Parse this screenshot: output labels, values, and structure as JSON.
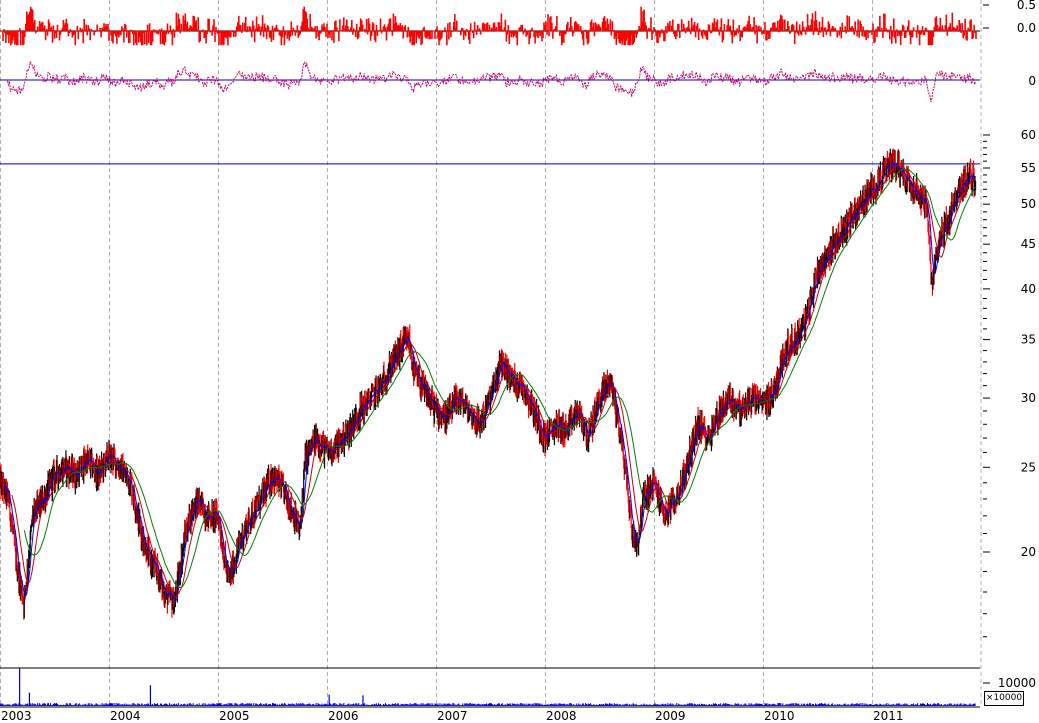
{
  "colors": {
    "background": "#ffffff",
    "oscillator_fill": "#ff0000",
    "reference_line": "#0000cc",
    "price_bars": "#000000",
    "price_bars_down": "#ff0000",
    "ma_short": "#0000ff",
    "ma_mid": "#cc0000",
    "ma_long": "#008000",
    "volume": "#0000cc",
    "grid": "#b0b0b0"
  },
  "panels": {
    "oscillator_1": {
      "yticks": [
        "0.5",
        "0.0"
      ]
    },
    "oscillator_2": {
      "yticks": [
        "0"
      ]
    },
    "volume": {
      "ytick": "10000",
      "unit": "×10000"
    }
  },
  "chart_data": [
    {
      "type": "candlestick",
      "panel": "price",
      "scale": "log",
      "ylim": [
        15,
        62
      ],
      "yticks": [
        20,
        25,
        30,
        35,
        40,
        45,
        50,
        55,
        60
      ],
      "reference_line": 55.6,
      "xticks": [
        "2003",
        "2004",
        "2005",
        "2006",
        "2007",
        "2008",
        "2009",
        "2010",
        "2011"
      ],
      "xlim": [
        2003.0,
        2011.95
      ],
      "grid": "vertical dashed at year boundaries",
      "close_series": {
        "x": [
          2003.0,
          2003.08,
          2003.15,
          2003.22,
          2003.3,
          2003.4,
          2003.5,
          2003.6,
          2003.7,
          2003.8,
          2003.9,
          2004.0,
          2004.1,
          2004.2,
          2004.3,
          2004.38,
          2004.45,
          2004.5,
          2004.6,
          2004.7,
          2004.8,
          2004.9,
          2005.0,
          2005.05,
          2005.1,
          2005.2,
          2005.3,
          2005.4,
          2005.5,
          2005.6,
          2005.7,
          2005.75,
          2005.8,
          2005.9,
          2006.0,
          2006.1,
          2006.2,
          2006.3,
          2006.4,
          2006.5,
          2006.6,
          2006.7,
          2006.75,
          2006.8,
          2006.9,
          2007.0,
          2007.1,
          2007.2,
          2007.3,
          2007.4,
          2007.5,
          2007.6,
          2007.7,
          2007.8,
          2007.9,
          2008.0,
          2008.1,
          2008.2,
          2008.3,
          2008.4,
          2008.5,
          2008.6,
          2008.7,
          2008.75,
          2008.8,
          2008.85,
          2008.9,
          2009.0,
          2009.1,
          2009.2,
          2009.3,
          2009.4,
          2009.5,
          2009.6,
          2009.7,
          2009.8,
          2009.9,
          2010.0,
          2010.1,
          2010.2,
          2010.3,
          2010.4,
          2010.5,
          2010.6,
          2010.7,
          2010.8,
          2010.9,
          2011.0,
          2011.1,
          2011.2,
          2011.3,
          2011.4,
          2011.5,
          2011.55,
          2011.6,
          2011.7,
          2011.8,
          2011.9,
          2011.95
        ],
        "y": [
          24,
          23,
          19.5,
          17.5,
          22,
          23,
          24.5,
          25,
          24.5,
          25.5,
          24.5,
          25.8,
          25,
          24,
          21,
          19.5,
          19,
          18,
          17.5,
          21,
          23,
          22,
          22,
          20,
          18.5,
          20.5,
          22,
          23,
          24.5,
          23.5,
          22,
          21,
          25.5,
          27,
          26,
          26.5,
          27.5,
          29,
          30,
          31,
          33,
          34.5,
          35,
          32,
          30.5,
          29,
          28.5,
          30,
          29,
          28,
          30,
          33,
          31.5,
          31,
          29,
          27,
          28,
          27.5,
          29,
          27,
          30,
          31.5,
          27,
          24,
          21,
          20.5,
          23,
          24,
          22,
          23,
          25,
          28,
          27,
          29,
          30,
          29,
          30,
          29.5,
          30.5,
          34,
          35,
          37,
          42,
          44,
          46,
          48,
          50,
          52,
          54,
          56,
          54,
          52,
          50,
          40,
          45,
          48,
          52,
          54,
          53
        ]
      }
    },
    {
      "type": "line",
      "panel": "oscillator_1",
      "style": "filled histogram",
      "yticks": [
        0.5,
        0.0
      ]
    },
    {
      "type": "line",
      "panel": "oscillator_2",
      "yticks": [
        0
      ]
    },
    {
      "type": "bar",
      "panel": "volume",
      "ytick": 10000,
      "unit": "×10000",
      "spikes": [
        {
          "x": 2003.18,
          "value": 1.0
        },
        {
          "x": 2003.27,
          "value": 0.35
        },
        {
          "x": 2004.38,
          "value": 0.55
        },
        {
          "x": 2006.02,
          "value": 0.3
        },
        {
          "x": 2006.33,
          "value": 0.28
        }
      ]
    }
  ]
}
